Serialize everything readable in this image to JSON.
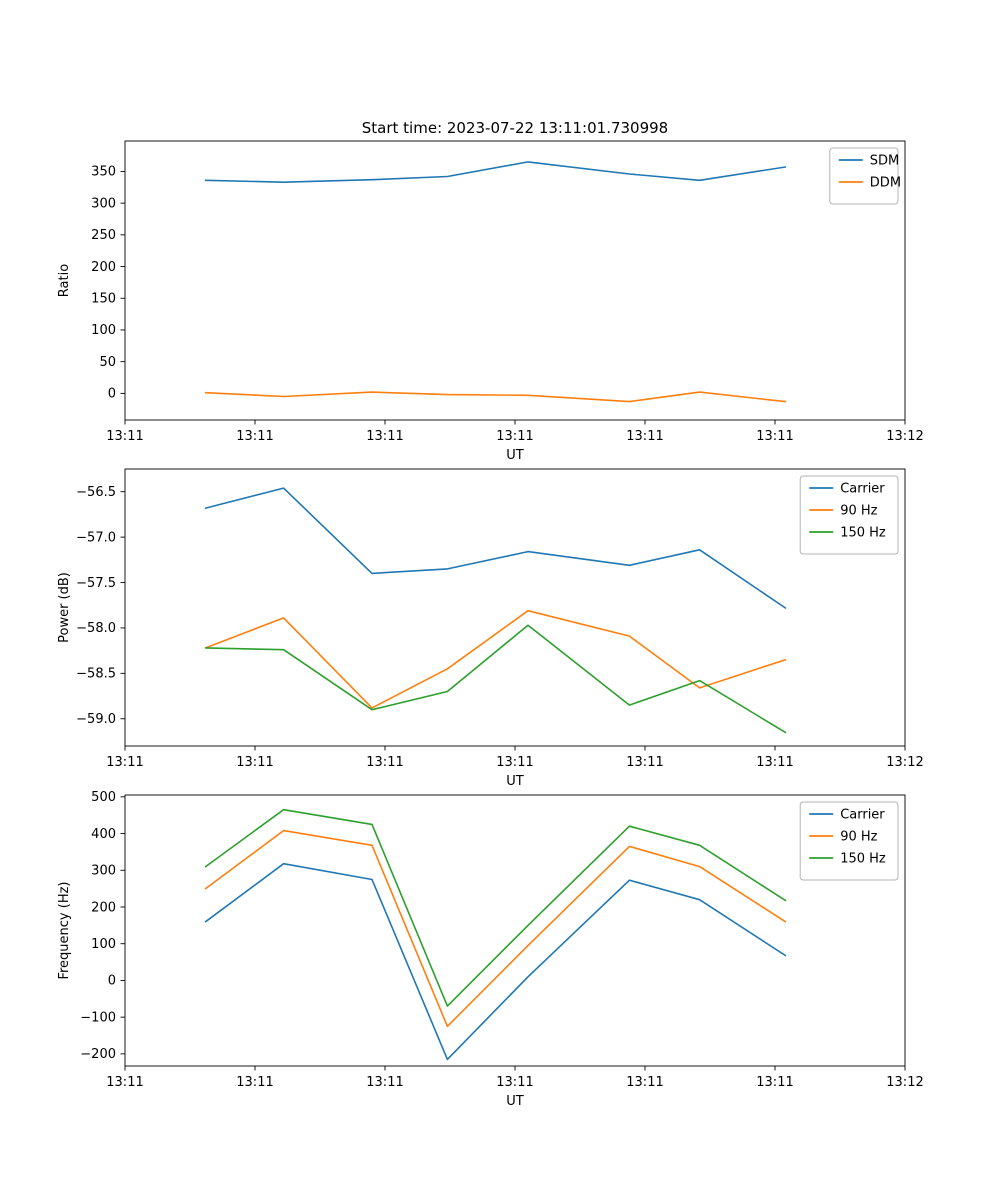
{
  "figure": {
    "title": "Start time: 2023-07-22 13:11:01.730998"
  },
  "colors": {
    "blue": "#1f77b4",
    "orange": "#ff7f0e",
    "green": "#2ca02c",
    "axis": "#000000",
    "legend_border": "#b3b3b3"
  },
  "chart_data": [
    {
      "type": "line",
      "title": "Start time: 2023-07-22 13:11:01.730998",
      "xlabel": "UT",
      "ylabel": "Ratio",
      "xlim": [
        0,
        60
      ],
      "ylim": [
        -42,
        398
      ],
      "x": [
        6.2,
        12.2,
        19,
        24.8,
        31,
        38.8,
        44.2,
        50.8
      ],
      "xticks": {
        "positions": [
          0,
          10,
          20,
          30,
          40,
          50,
          60
        ],
        "labels": [
          "13:11",
          "13:11",
          "13:11",
          "13:11",
          "13:11",
          "13:11",
          "13:12"
        ]
      },
      "yticks": {
        "positions": [
          0,
          50,
          100,
          150,
          200,
          250,
          300,
          350
        ],
        "labels": [
          "0",
          "50",
          "100",
          "150",
          "200",
          "250",
          "300",
          "350"
        ]
      },
      "legend_position": "upper right",
      "grid": false,
      "series": [
        {
          "name": "SDM",
          "color": "#1f77b4",
          "values": [
            336,
            333,
            337,
            342,
            365,
            346,
            336,
            357
          ]
        },
        {
          "name": "DDM",
          "color": "#ff7f0e",
          "values": [
            1,
            -5,
            2,
            -2,
            -3,
            -13,
            2,
            -13
          ]
        }
      ]
    },
    {
      "type": "line",
      "title": "",
      "xlabel": "UT",
      "ylabel": "Power (dB)",
      "xlim": [
        0,
        60
      ],
      "ylim": [
        -59.3,
        -56.25
      ],
      "x": [
        6.2,
        12.2,
        19,
        24.8,
        31,
        38.8,
        44.2,
        50.8
      ],
      "xticks": {
        "positions": [
          0,
          10,
          20,
          30,
          40,
          50,
          60
        ],
        "labels": [
          "13:11",
          "13:11",
          "13:11",
          "13:11",
          "13:11",
          "13:11",
          "13:12"
        ]
      },
      "yticks": {
        "positions": [
          -59.0,
          -58.5,
          -58.0,
          -57.5,
          -57.0,
          -56.5
        ],
        "labels": [
          "−59.0",
          "−58.5",
          "−58.0",
          "−57.5",
          "−57.0",
          "−56.5"
        ]
      },
      "legend_position": "upper right",
      "grid": false,
      "series": [
        {
          "name": "Carrier",
          "color": "#1f77b4",
          "values": [
            -56.68,
            -56.46,
            -57.4,
            -57.35,
            -57.16,
            -57.31,
            -57.14,
            -57.78
          ]
        },
        {
          "name": "90 Hz",
          "color": "#ff7f0e",
          "values": [
            -58.22,
            -57.89,
            -58.88,
            -58.45,
            -57.81,
            -58.09,
            -58.66,
            -58.35
          ]
        },
        {
          "name": "150 Hz",
          "color": "#2ca02c",
          "values": [
            -58.22,
            -58.24,
            -58.9,
            -58.7,
            -57.97,
            -58.85,
            -58.58,
            -59.15
          ]
        }
      ]
    },
    {
      "type": "line",
      "title": "",
      "xlabel": "UT",
      "ylabel": "Frequency (Hz)",
      "xlim": [
        0,
        60
      ],
      "ylim": [
        -233,
        505
      ],
      "x": [
        6.2,
        12.2,
        19,
        24.8,
        31,
        38.8,
        44.2,
        50.8
      ],
      "xticks": {
        "positions": [
          0,
          10,
          20,
          30,
          40,
          50,
          60
        ],
        "labels": [
          "13:11",
          "13:11",
          "13:11",
          "13:11",
          "13:11",
          "13:11",
          "13:12"
        ]
      },
      "yticks": {
        "positions": [
          -200,
          -100,
          0,
          100,
          200,
          300,
          400,
          500
        ],
        "labels": [
          "−200",
          "−100",
          "0",
          "100",
          "200",
          "300",
          "400",
          "500"
        ]
      },
      "legend_position": "upper right",
      "grid": false,
      "series": [
        {
          "name": "Carrier",
          "color": "#1f77b4",
          "values": [
            160,
            318,
            275,
            -215,
            10,
            273,
            220,
            68
          ]
        },
        {
          "name": "90 Hz",
          "color": "#ff7f0e",
          "values": [
            250,
            408,
            368,
            -125,
            95,
            365,
            310,
            160
          ]
        },
        {
          "name": "150 Hz",
          "color": "#2ca02c",
          "values": [
            310,
            465,
            425,
            -70,
            150,
            420,
            368,
            218
          ]
        }
      ]
    }
  ]
}
